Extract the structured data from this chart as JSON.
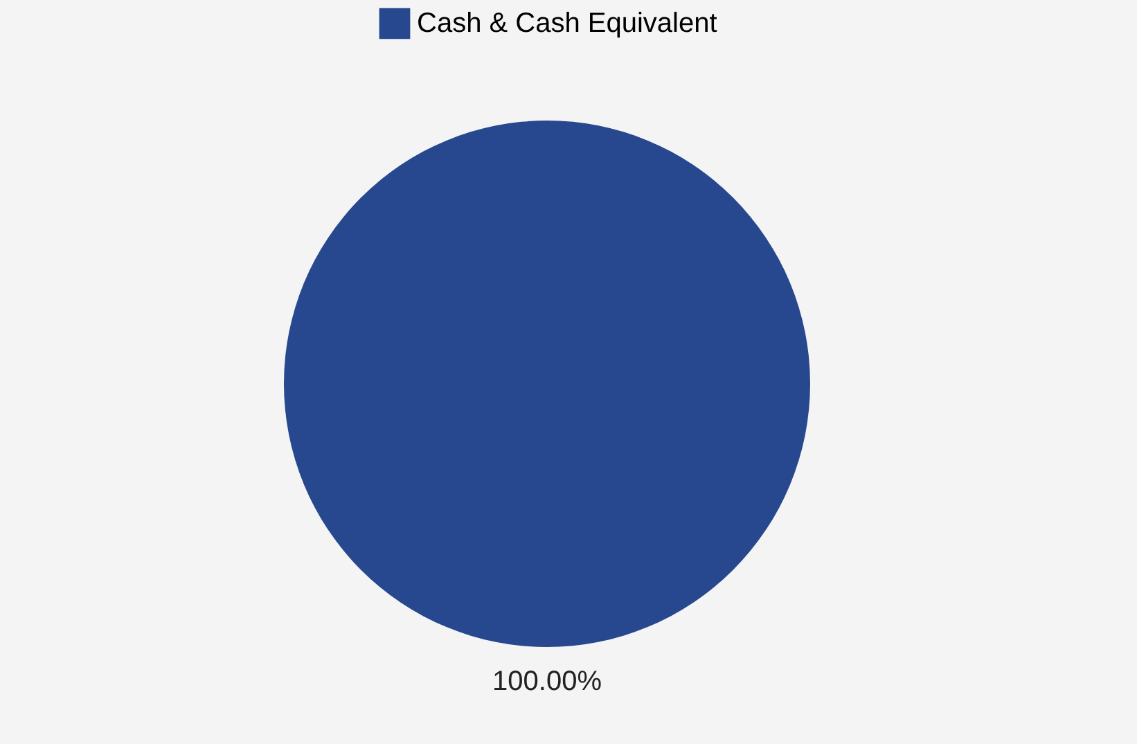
{
  "chart_data": {
    "type": "pie",
    "categories": [
      "Cash & Cash Equivalent"
    ],
    "values": [
      100
    ],
    "colors": [
      "#27488f"
    ],
    "value_labels": [
      "100.00%"
    ],
    "legend": "top"
  }
}
